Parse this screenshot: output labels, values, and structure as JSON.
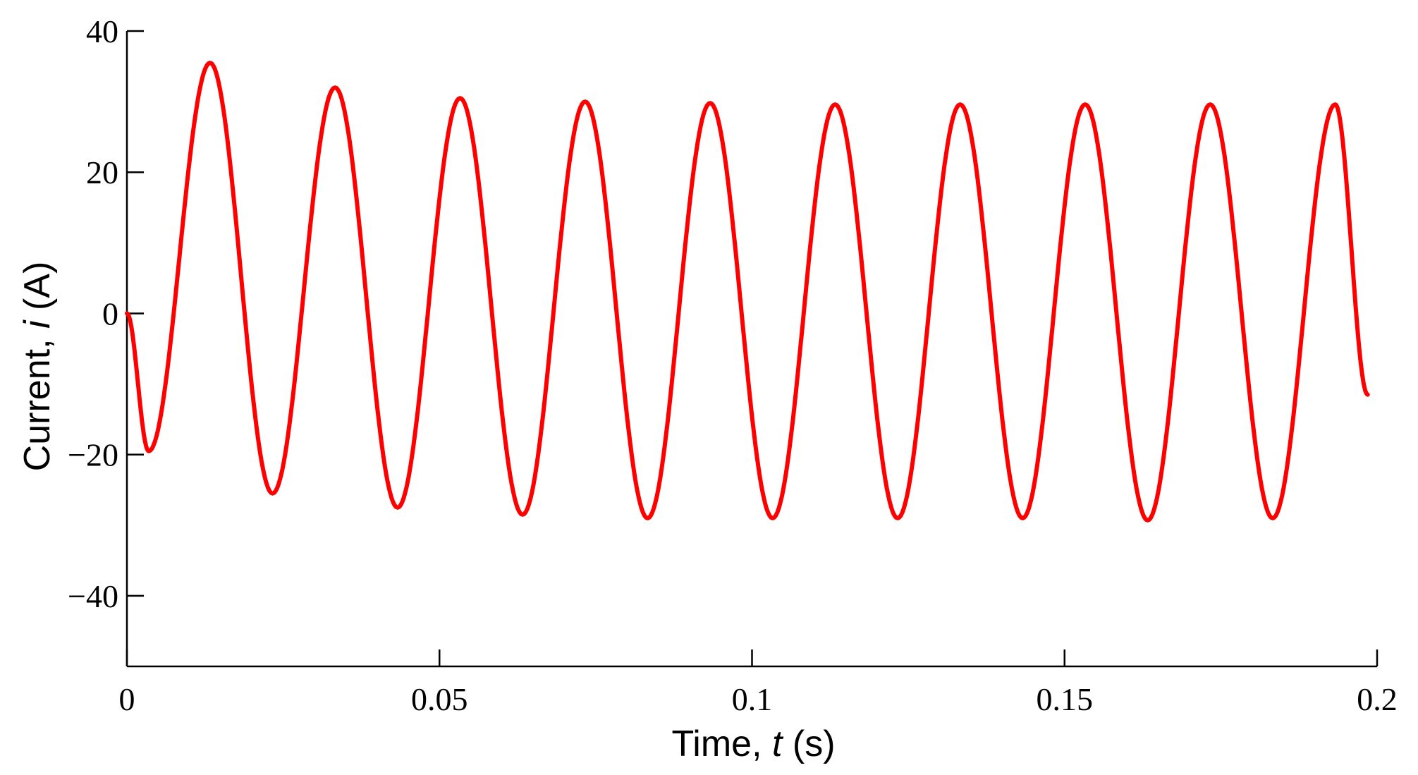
{
  "chart_data": {
    "type": "line",
    "title": "",
    "xlabel": "Time, t (s)",
    "xlabel_parts": {
      "prefix": "Time, ",
      "var": "t",
      "suffix": " (s)"
    },
    "ylabel": "Current, i (A)",
    "ylabel_parts": {
      "prefix": "Current, ",
      "var": "i",
      "suffix": " (A)"
    },
    "xlim": [
      0,
      0.2
    ],
    "ylim": [
      -50,
      40
    ],
    "xticks": [
      0,
      0.05,
      0.1,
      0.15,
      0.2
    ],
    "xtick_labels": [
      "0",
      "0.05",
      "0.1",
      "0.15",
      "0.2"
    ],
    "yticks": [
      40,
      20,
      0,
      -20,
      -40
    ],
    "ytick_labels": [
      "40",
      "20",
      "0",
      "−20",
      "−40"
    ],
    "grid": false,
    "line_color": "#ff0000",
    "series": [
      {
        "x": [
          0,
          0.0035,
          0.0133,
          0.0233,
          0.0333,
          0.0433,
          0.0533,
          0.0633,
          0.0733,
          0.0833,
          0.0933,
          0.1033,
          0.1133,
          0.1233,
          0.1333,
          0.1433,
          0.1533,
          0.1633,
          0.1733,
          0.1833,
          0.1933,
          0.1985
        ],
        "y": [
          0,
          -19.5,
          35.5,
          -25.5,
          32,
          -27.5,
          30.5,
          -28.5,
          30,
          -29,
          29.8,
          -29,
          29.6,
          -29,
          29.6,
          -29,
          29.6,
          -29.3,
          29.6,
          -29,
          29.6,
          -11.5
        ]
      }
    ]
  }
}
